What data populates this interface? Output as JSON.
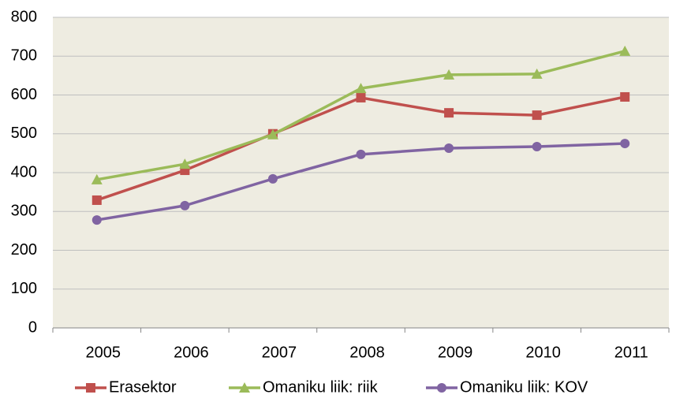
{
  "chart_data": {
    "type": "line",
    "categories": [
      "2005",
      "2006",
      "2007",
      "2008",
      "2009",
      "2010",
      "2011"
    ],
    "series": [
      {
        "name": "Erasektor",
        "color": "#c0504d",
        "marker": "square",
        "values": [
          329,
          406,
          500,
          593,
          554,
          548,
          595
        ]
      },
      {
        "name": "Omaniku liik: riik",
        "color": "#9bbb59",
        "marker": "triangle",
        "values": [
          382,
          422,
          498,
          617,
          652,
          654,
          713
        ]
      },
      {
        "name": "Omaniku liik: KOV",
        "color": "#8064a2",
        "marker": "circle",
        "values": [
          278,
          315,
          384,
          447,
          463,
          467,
          475
        ]
      }
    ],
    "ylim": [
      0,
      800
    ],
    "yticks": [
      0,
      100,
      200,
      300,
      400,
      500,
      600,
      700,
      800
    ],
    "grid": true,
    "legend": "bottom"
  }
}
